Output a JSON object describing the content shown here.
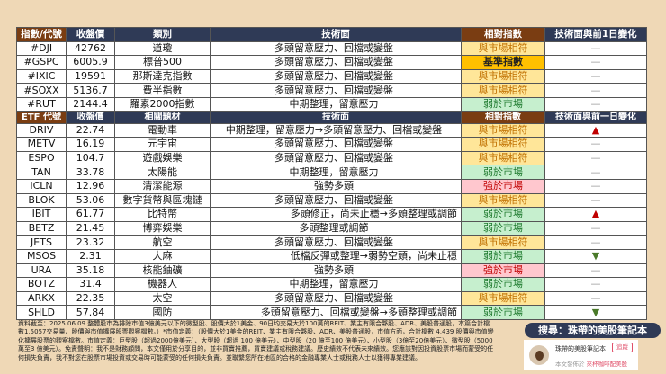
{
  "index_header": [
    "指數/代號",
    "收盤價",
    "類別",
    "技術面",
    "相對指數",
    "技術面與前1日變化"
  ],
  "index_rows": [
    {
      "code": "#DJI",
      "price": "42762",
      "category": "道瓊",
      "tech": "多頭留意壓力、回檔或變盤",
      "relative": "與市場相符",
      "rel_type": "same",
      "change": "—",
      "change_type": "none"
    },
    {
      "code": "#GSPC",
      "price": "6005.9",
      "category": "標普500",
      "tech": "多頭留意壓力、回檔或變盤",
      "relative": "基準指數",
      "rel_type": "base",
      "change": "—",
      "change_type": "none"
    },
    {
      "code": "#IXIC",
      "price": "19591",
      "category": "那斯達克指數",
      "tech": "多頭留意壓力、回檔或變盤",
      "relative": "與市場相符",
      "rel_type": "same",
      "change": "—",
      "change_type": "none"
    },
    {
      "code": "#SOXX",
      "price": "5136.7",
      "category": "費半指數",
      "tech": "多頭留意壓力、回檔或變盤",
      "relative": "與市場相符",
      "rel_type": "same",
      "change": "—",
      "change_type": "none"
    },
    {
      "code": "#RUT",
      "price": "2144.4",
      "category": "羅素2000指數",
      "tech": "中期整理，留意壓力",
      "relative": "弱於市場",
      "rel_type": "weak",
      "change": "—",
      "change_type": "none"
    }
  ],
  "etf_header": [
    "ETF 代號",
    "收盤價",
    "相關題材",
    "技術面",
    "相對指數",
    "技術面與前一日變化"
  ],
  "etf_rows": [
    {
      "code": "DRIV",
      "price": "22.74",
      "category": "電動車",
      "tech": "中期整理，留意壓力→多頭留意壓力、回檔或變盤",
      "relative": "與市場相符",
      "rel_type": "same",
      "change": "▲",
      "change_type": "up"
    },
    {
      "code": "METV",
      "price": "16.19",
      "category": "元宇宙",
      "tech": "多頭留意壓力、回檔或變盤",
      "relative": "與市場相符",
      "rel_type": "same",
      "change": "—",
      "change_type": "none"
    },
    {
      "code": "ESPO",
      "price": "104.7",
      "category": "遊戲娛樂",
      "tech": "多頭留意壓力、回檔或變盤",
      "relative": "與市場相符",
      "rel_type": "same",
      "change": "—",
      "change_type": "none"
    },
    {
      "code": "TAN",
      "price": "33.78",
      "category": "太陽能",
      "tech": "中期整理，留意壓力",
      "relative": "弱於市場",
      "rel_type": "weak",
      "change": "—",
      "change_type": "none"
    },
    {
      "code": "ICLN",
      "price": "12.96",
      "category": "清潔能源",
      "tech": "強勢多頭",
      "relative": "強於市場",
      "rel_type": "strong",
      "change": "—",
      "change_type": "none"
    },
    {
      "code": "BLOK",
      "price": "53.06",
      "category": "數字貨幣與區塊鏈",
      "tech": "多頭留意壓力、回檔或變盤",
      "relative": "與市場相符",
      "rel_type": "same",
      "change": "—",
      "change_type": "none"
    },
    {
      "code": "IBIT",
      "price": "61.77",
      "category": "比特幣",
      "tech": "多頭修正，尚未止穩→多頭整理或調節",
      "relative": "弱於市場",
      "rel_type": "weak",
      "change": "▲",
      "change_type": "up"
    },
    {
      "code": "BETZ",
      "price": "21.45",
      "category": "博弈娛樂",
      "tech": "多頭整理或調節",
      "relative": "弱於市場",
      "rel_type": "weak",
      "change": "—",
      "change_type": "none"
    },
    {
      "code": "JETS",
      "price": "23.32",
      "category": "航空",
      "tech": "多頭留意壓力、回檔或變盤",
      "relative": "與市場相符",
      "rel_type": "same",
      "change": "—",
      "change_type": "none"
    },
    {
      "code": "MSOS",
      "price": "2.31",
      "category": "大麻",
      "tech": "低檔反彈或整理→弱勢空頭，尚未止穩",
      "relative": "弱於市場",
      "rel_type": "weak",
      "change": "▼",
      "change_type": "down"
    },
    {
      "code": "URA",
      "price": "35.18",
      "category": "核能鈾礦",
      "tech": "強勢多頭",
      "relative": "強於市場",
      "rel_type": "strong",
      "change": "—",
      "change_type": "none"
    },
    {
      "code": "BOTZ",
      "price": "31.4",
      "category": "機器人",
      "tech": "中期整理，留意壓力",
      "relative": "弱於市場",
      "rel_type": "weak",
      "change": "—",
      "change_type": "none"
    },
    {
      "code": "ARKX",
      "price": "22.35",
      "category": "太空",
      "tech": "多頭留意壓力、回檔或變盤",
      "relative": "與市場相符",
      "rel_type": "same",
      "change": "—",
      "change_type": "none"
    },
    {
      "code": "SHLD",
      "price": "57.84",
      "category": "國防",
      "tech": "多頭留意壓力、回檔或變盤→多頭整理或調節",
      "relative": "弱於市場",
      "rel_type": "weak",
      "change": "▼",
      "change_type": "down"
    }
  ],
  "disclaimer": "資料截至：2025.06.09 整體股市為排除市值3億美元以下的微型股、股價大於1美金、90日均交易大於100萬的REIT、業主有限合夥股、ADR、美股普通股，本篇合計檔數1,5057交易量、股價與市值擴展股票觀察檔數。）*市值定義：（股價大於1美金的REIT、業主有限合夥股、ADR、美股普通股，市值方面，合計檔數 4,439 股價與市值變化擴展股票的觀察檔數。市值定義：巨型股（超過2000億美元）、大型股（超過 100 億美元）、中型股（20 億至100 億美元）、小型股（3億至20億美元）、微型股（5000萬至3 億美元）。免責聲明：我不是財務顧問，本文僅用於分享目的，並非買賣推薦，買賣建議或稅務建議。歷史績效不代表未來績效。您應該對因投資股票市場而蒙受的任何損失負責，我不對您在股票市場投資或交易時可能蒙受的任何損失負責。並聯繫您所在地區的合格的金融專業人士或稅務人士以獲得專業建議。",
  "search_banner": "搜尋：珠帶的美股筆記本",
  "card": {
    "name": "珠帶的美股筆記本",
    "follow": "追蹤",
    "published_prefix": "本文發佈於",
    "published_site": "來杯咖啡配美股"
  },
  "colors": {
    "header": "#2f3a56",
    "header_accent": "#7a3d12",
    "same": "#ffe699",
    "base": "#ffc000",
    "weak": "#c6efce",
    "strong": "#ffc7ce",
    "up": "#c00000",
    "down": "#4a7a2a"
  }
}
